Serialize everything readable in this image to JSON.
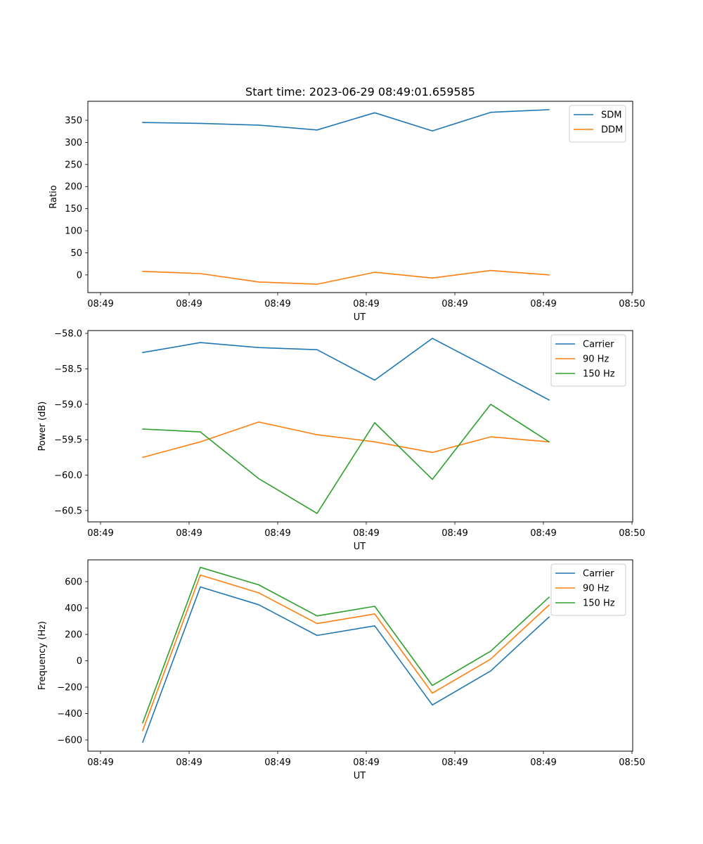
{
  "colors": {
    "blue": "#1f77b4",
    "orange": "#ff7f0e",
    "green": "#2ca02c"
  },
  "chart_data": [
    {
      "type": "line",
      "title": "Start time: 2023-06-29 08:49:01.659585",
      "xlabel": "UT",
      "ylabel": "Ratio",
      "grid": false,
      "legend_position": "top-right",
      "x_tick_labels": [
        "08:49",
        "08:49",
        "08:49",
        "08:49",
        "08:49",
        "08:49",
        "08:50"
      ],
      "y_ticks": [
        0,
        50,
        100,
        150,
        200,
        250,
        300,
        350
      ],
      "y_tick_labels": [
        "0",
        "50",
        "100",
        "150",
        "200",
        "250",
        "300",
        "350"
      ],
      "ylim": [
        -40,
        393
      ],
      "series": [
        {
          "name": "SDM",
          "color": "#1f77b4",
          "values": [
            345,
            343,
            339,
            328,
            367,
            326,
            368,
            374
          ]
        },
        {
          "name": "DDM",
          "color": "#ff7f0e",
          "values": [
            8,
            3,
            -16,
            -21,
            6,
            -7,
            10,
            0
          ]
        }
      ]
    },
    {
      "type": "line",
      "title": "",
      "xlabel": "UT",
      "ylabel": "Power (dB)",
      "grid": false,
      "legend_position": "top-right",
      "x_tick_labels": [
        "08:49",
        "08:49",
        "08:49",
        "08:49",
        "08:49",
        "08:49",
        "08:50"
      ],
      "y_ticks": [
        -60.5,
        -60.0,
        -59.5,
        -59.0,
        -58.5,
        -58.0
      ],
      "y_tick_labels": [
        "−60.5",
        "−60.0",
        "−59.5",
        "−59.0",
        "−58.5",
        "−58.0"
      ],
      "ylim": [
        -60.66,
        -57.96
      ],
      "series": [
        {
          "name": "Carrier",
          "color": "#1f77b4",
          "values": [
            -58.27,
            -58.13,
            -58.2,
            -58.23,
            -58.66,
            -58.07,
            -58.5,
            -58.94
          ]
        },
        {
          "name": "90 Hz",
          "color": "#ff7f0e",
          "values": [
            -59.75,
            -59.53,
            -59.25,
            -59.43,
            -59.53,
            -59.68,
            -59.46,
            -59.53
          ]
        },
        {
          "name": "150 Hz",
          "color": "#2ca02c",
          "values": [
            -59.35,
            -59.39,
            -60.05,
            -60.54,
            -59.26,
            -60.06,
            -59.0,
            -59.53
          ]
        }
      ]
    },
    {
      "type": "line",
      "title": "",
      "xlabel": "UT",
      "ylabel": "Frequency (Hz)",
      "grid": false,
      "legend_position": "top-right",
      "x_tick_labels": [
        "08:49",
        "08:49",
        "08:49",
        "08:49",
        "08:49",
        "08:49",
        "08:50"
      ],
      "y_ticks": [
        -600,
        -400,
        -200,
        0,
        200,
        400,
        600
      ],
      "y_tick_labels": [
        "−600",
        "−400",
        "−200",
        "0",
        "200",
        "400",
        "600"
      ],
      "ylim": [
        -685,
        765
      ],
      "series": [
        {
          "name": "Carrier",
          "color": "#1f77b4",
          "values": [
            -618,
            560,
            425,
            192,
            265,
            -335,
            -77,
            332
          ]
        },
        {
          "name": "90 Hz",
          "color": "#ff7f0e",
          "values": [
            -528,
            650,
            515,
            282,
            355,
            -245,
            13,
            422
          ]
        },
        {
          "name": "150 Hz",
          "color": "#2ca02c",
          "values": [
            -470,
            708,
            576,
            340,
            413,
            -187,
            73,
            482
          ]
        }
      ]
    }
  ]
}
